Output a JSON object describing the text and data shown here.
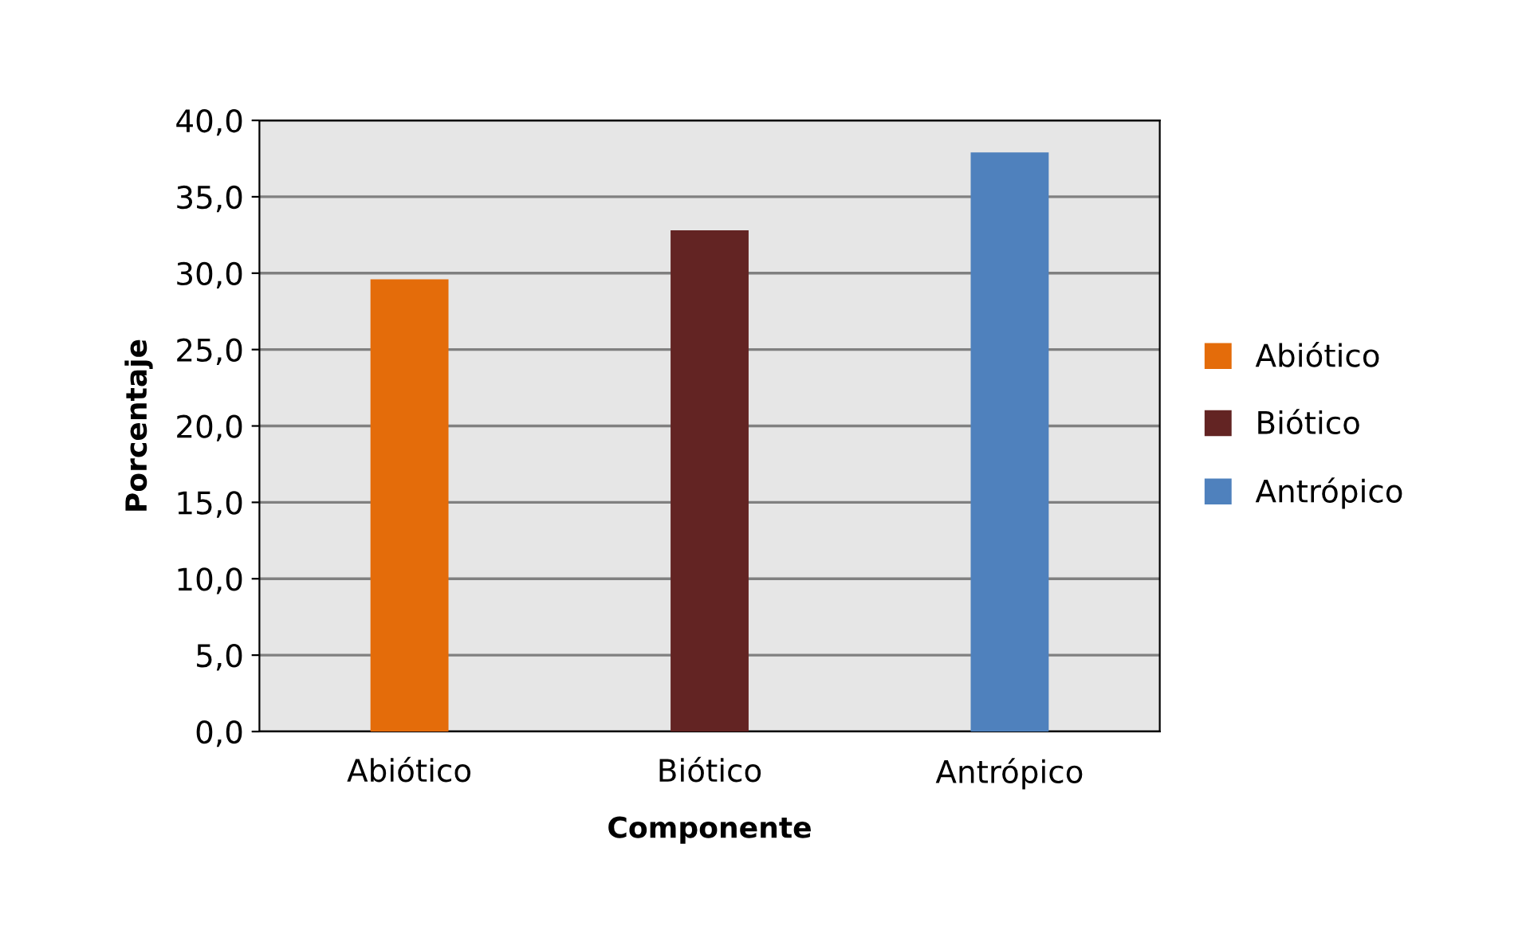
{
  "chart_data": {
    "type": "bar",
    "xlabel": "Componente",
    "ylabel": "Porcentaje",
    "categories": [
      "Abiótico",
      "Biótico",
      "Antrópico"
    ],
    "series": [
      {
        "name": "Abiótico",
        "color": "#e46c0a",
        "values": [
          29.6,
          null,
          null
        ]
      },
      {
        "name": "Biótico",
        "color": "#632423",
        "values": [
          null,
          32.8,
          null
        ]
      },
      {
        "name": "Antrópico",
        "color": "#4f81bd",
        "values": [
          null,
          null,
          37.9
        ]
      }
    ],
    "ylim": [
      0,
      40
    ],
    "yticks": [
      {
        "value": 0,
        "label": "0,0"
      },
      {
        "value": 5,
        "label": "5,0"
      },
      {
        "value": 10,
        "label": "10,0"
      },
      {
        "value": 15,
        "label": "15,0"
      },
      {
        "value": 20,
        "label": "20,0"
      },
      {
        "value": 25,
        "label": "25,0"
      },
      {
        "value": 30,
        "label": "30,0"
      },
      {
        "value": 35,
        "label": "35,0"
      },
      {
        "value": 40,
        "label": "40,0"
      }
    ],
    "grid": "y",
    "legend": "right"
  }
}
